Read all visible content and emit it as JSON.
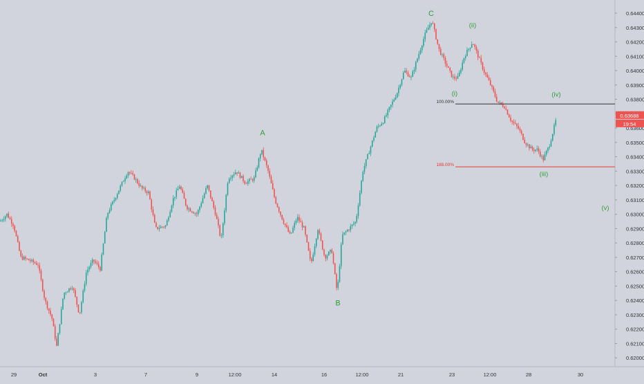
{
  "chart_data": {
    "type": "candlestick",
    "symbol_note": "",
    "colors": {
      "background": "#d1d4dc",
      "up": "#26a69a",
      "down": "#ef5350",
      "wave_label": "#2e9e36",
      "axis_text": "#333333",
      "fib_100_line": "#333333",
      "fib_188_line": "#e53935",
      "price_tag_bg": "#ef5350",
      "price_tag_text": "#ffffff"
    },
    "y_axis": {
      "ylim": [
        0.6195,
        0.645
      ],
      "ticks": [
        "0.64400",
        "0.64300",
        "0.64200",
        "0.64100",
        "0.64000",
        "0.63900",
        "0.63800",
        "0.63700",
        "0.63600",
        "0.63500",
        "0.63400",
        "0.63300",
        "0.63200",
        "0.63100",
        "0.63000",
        "0.62900",
        "0.62800",
        "0.62700",
        "0.62600",
        "0.62500",
        "0.62400",
        "0.62300",
        "0.62200",
        "0.62100",
        "0.62000"
      ]
    },
    "x_axis": {
      "ticks": [
        {
          "label": "29",
          "pos": 20
        },
        {
          "label": "Oct",
          "pos": 62,
          "bold": true
        },
        {
          "label": "3",
          "pos": 138
        },
        {
          "label": "7",
          "pos": 211
        },
        {
          "label": "9",
          "pos": 285
        },
        {
          "label": "12:00",
          "pos": 340
        },
        {
          "label": "14",
          "pos": 397
        },
        {
          "label": "16",
          "pos": 469
        },
        {
          "label": "12:00",
          "pos": 524
        },
        {
          "label": "21",
          "pos": 580
        },
        {
          "label": "23",
          "pos": 654
        },
        {
          "label": "12:00",
          "pos": 709
        },
        {
          "label": "28",
          "pos": 765
        },
        {
          "label": "30",
          "pos": 840
        }
      ]
    },
    "price_path": [
      [
        0,
        0.6295
      ],
      [
        10,
        0.63
      ],
      [
        20,
        0.6292
      ],
      [
        30,
        0.627
      ],
      [
        42,
        0.6268
      ],
      [
        55,
        0.6265
      ],
      [
        65,
        0.624
      ],
      [
        75,
        0.6228
      ],
      [
        82,
        0.6208
      ],
      [
        92,
        0.6245
      ],
      [
        105,
        0.625
      ],
      [
        115,
        0.623
      ],
      [
        125,
        0.626
      ],
      [
        135,
        0.6268
      ],
      [
        145,
        0.6262
      ],
      [
        155,
        0.63
      ],
      [
        165,
        0.631
      ],
      [
        175,
        0.632
      ],
      [
        185,
        0.633
      ],
      [
        195,
        0.6325
      ],
      [
        205,
        0.6318
      ],
      [
        215,
        0.6315
      ],
      [
        225,
        0.629
      ],
      [
        240,
        0.6292
      ],
      [
        250,
        0.631
      ],
      [
        260,
        0.632
      ],
      [
        270,
        0.6305
      ],
      [
        285,
        0.63
      ],
      [
        300,
        0.632
      ],
      [
        312,
        0.63
      ],
      [
        320,
        0.6282
      ],
      [
        330,
        0.6325
      ],
      [
        342,
        0.633
      ],
      [
        355,
        0.6322
      ],
      [
        368,
        0.6325
      ],
      [
        378,
        0.6345
      ],
      [
        388,
        0.633
      ],
      [
        398,
        0.631
      ],
      [
        410,
        0.6295
      ],
      [
        420,
        0.6285
      ],
      [
        430,
        0.6298
      ],
      [
        440,
        0.629
      ],
      [
        450,
        0.6265
      ],
      [
        460,
        0.629
      ],
      [
        470,
        0.627
      ],
      [
        480,
        0.6275
      ],
      [
        488,
        0.6245
      ],
      [
        495,
        0.6285
      ],
      [
        505,
        0.629
      ],
      [
        515,
        0.6295
      ],
      [
        525,
        0.633
      ],
      [
        535,
        0.6345
      ],
      [
        545,
        0.636
      ],
      [
        555,
        0.6365
      ],
      [
        565,
        0.6375
      ],
      [
        575,
        0.6385
      ],
      [
        585,
        0.64
      ],
      [
        595,
        0.6395
      ],
      [
        605,
        0.641
      ],
      [
        615,
        0.6425
      ],
      [
        625,
        0.6435
      ],
      [
        635,
        0.6415
      ],
      [
        645,
        0.6405
      ],
      [
        655,
        0.6395
      ],
      [
        663,
        0.6395
      ],
      [
        672,
        0.641
      ],
      [
        684,
        0.642
      ],
      [
        692,
        0.641
      ],
      [
        700,
        0.64
      ],
      [
        710,
        0.639
      ],
      [
        720,
        0.6378
      ],
      [
        730,
        0.6375
      ],
      [
        740,
        0.6365
      ],
      [
        750,
        0.636
      ],
      [
        760,
        0.635
      ],
      [
        770,
        0.6345
      ],
      [
        778,
        0.6345
      ],
      [
        786,
        0.6338
      ],
      [
        795,
        0.6348
      ],
      [
        806,
        0.6368
      ]
    ],
    "wave_labels": [
      {
        "text": "A",
        "x": 380,
        "y": 0.6357
      },
      {
        "text": "B",
        "x": 489,
        "y": 0.62385
      },
      {
        "text": "C",
        "x": 624,
        "y": 0.644
      },
      {
        "text": "(i)",
        "x": 658,
        "y": 0.63845
      },
      {
        "text": "(ii)",
        "x": 684,
        "y": 0.6432
      },
      {
        "text": "(iii)",
        "x": 787,
        "y": 0.63285
      },
      {
        "text": "(iv)",
        "x": 805,
        "y": 0.6384
      },
      {
        "text": "(v)",
        "x": 876,
        "y": 0.6305
      }
    ],
    "fib_levels": [
      {
        "label": "100.00%",
        "value": 0.63768,
        "x_start": 659
      },
      {
        "label": "188.00%",
        "value": 0.6333,
        "x_start": 659
      }
    ],
    "current_price": {
      "label": "0.63688",
      "value": 0.63688
    },
    "countdown": {
      "label": "19:54"
    }
  }
}
